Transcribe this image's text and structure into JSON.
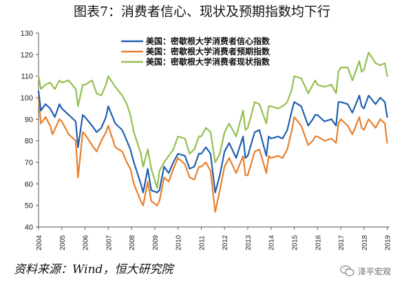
{
  "title": "图表7：消费者信心、现状及预期指数均下行",
  "source": "资料来源：Wind，恒大研究院",
  "watermark": "泽平宏观",
  "chart_data": {
    "type": "line",
    "x_ticks": [
      "2004",
      "2005",
      "2006",
      "2007",
      "2008",
      "2009",
      "2010",
      "2011",
      "2012",
      "2013",
      "2014",
      "2015",
      "2016",
      "2017",
      "2018",
      "2019"
    ],
    "y_ticks": [
      40,
      50,
      60,
      70,
      80,
      90,
      100,
      110,
      120,
      130
    ],
    "xlim": [
      2004.0,
      2019.1
    ],
    "ylim": [
      40,
      130
    ],
    "grid": false,
    "legend_position": "top-right",
    "series": [
      {
        "name": "美国：密歇根大学消费者信心指数",
        "color": "#1f5fad",
        "points": [
          [
            2004.0,
            103
          ],
          [
            2004.1,
            94
          ],
          [
            2004.3,
            97
          ],
          [
            2004.5,
            95
          ],
          [
            2004.7,
            91
          ],
          [
            2004.9,
            97
          ],
          [
            2005.0,
            95
          ],
          [
            2005.3,
            92
          ],
          [
            2005.6,
            89
          ],
          [
            2005.7,
            77
          ],
          [
            2005.9,
            92
          ],
          [
            2006.0,
            91
          ],
          [
            2006.3,
            87
          ],
          [
            2006.5,
            84
          ],
          [
            2006.7,
            86
          ],
          [
            2006.9,
            91
          ],
          [
            2007.0,
            96
          ],
          [
            2007.3,
            88
          ],
          [
            2007.6,
            85
          ],
          [
            2007.8,
            80
          ],
          [
            2007.95,
            76
          ],
          [
            2008.1,
            70
          ],
          [
            2008.4,
            60
          ],
          [
            2008.5,
            56
          ],
          [
            2008.7,
            67
          ],
          [
            2008.85,
            57
          ],
          [
            2009.1,
            56
          ],
          [
            2009.2,
            57
          ],
          [
            2009.4,
            68
          ],
          [
            2009.6,
            65
          ],
          [
            2009.8,
            70
          ],
          [
            2010.0,
            74
          ],
          [
            2010.3,
            73
          ],
          [
            2010.5,
            67
          ],
          [
            2010.7,
            68
          ],
          [
            2010.9,
            74
          ],
          [
            2011.0,
            74
          ],
          [
            2011.2,
            77
          ],
          [
            2011.4,
            74
          ],
          [
            2011.6,
            56
          ],
          [
            2011.8,
            64
          ],
          [
            2012.0,
            75
          ],
          [
            2012.2,
            79
          ],
          [
            2012.5,
            72
          ],
          [
            2012.8,
            82
          ],
          [
            2012.9,
            72
          ],
          [
            2013.0,
            73
          ],
          [
            2013.3,
            84
          ],
          [
            2013.5,
            85
          ],
          [
            2013.8,
            73
          ],
          [
            2013.9,
            82
          ],
          [
            2014.0,
            81
          ],
          [
            2014.3,
            82
          ],
          [
            2014.5,
            81
          ],
          [
            2014.7,
            85
          ],
          [
            2014.9,
            94
          ],
          [
            2015.0,
            98
          ],
          [
            2015.3,
            96
          ],
          [
            2015.6,
            87
          ],
          [
            2015.8,
            90
          ],
          [
            2015.9,
            92
          ],
          [
            2016.0,
            92
          ],
          [
            2016.3,
            89
          ],
          [
            2016.6,
            90
          ],
          [
            2016.8,
            87
          ],
          [
            2016.9,
            98
          ],
          [
            2017.0,
            98
          ],
          [
            2017.3,
            97
          ],
          [
            2017.5,
            93
          ],
          [
            2017.8,
            101
          ],
          [
            2017.9,
            96
          ],
          [
            2018.0,
            95
          ],
          [
            2018.2,
            101
          ],
          [
            2018.5,
            97
          ],
          [
            2018.7,
            100
          ],
          [
            2018.9,
            98
          ],
          [
            2019.0,
            91
          ]
        ]
      },
      {
        "name": "美国：密歇根大学消费者预期指数",
        "color": "#e87f2c",
        "points": [
          [
            2004.0,
            100
          ],
          [
            2004.1,
            88
          ],
          [
            2004.3,
            91
          ],
          [
            2004.5,
            87
          ],
          [
            2004.6,
            83
          ],
          [
            2004.9,
            90
          ],
          [
            2005.0,
            89
          ],
          [
            2005.3,
            83
          ],
          [
            2005.6,
            80
          ],
          [
            2005.7,
            63
          ],
          [
            2005.9,
            84
          ],
          [
            2006.0,
            83
          ],
          [
            2006.3,
            78
          ],
          [
            2006.5,
            75
          ],
          [
            2006.7,
            80
          ],
          [
            2006.9,
            84
          ],
          [
            2007.0,
            87
          ],
          [
            2007.3,
            77
          ],
          [
            2007.6,
            75
          ],
          [
            2007.8,
            70
          ],
          [
            2007.95,
            67
          ],
          [
            2008.1,
            60
          ],
          [
            2008.4,
            52
          ],
          [
            2008.5,
            50
          ],
          [
            2008.7,
            61
          ],
          [
            2008.85,
            52
          ],
          [
            2009.1,
            50
          ],
          [
            2009.2,
            52
          ],
          [
            2009.4,
            63
          ],
          [
            2009.6,
            61
          ],
          [
            2009.8,
            67
          ],
          [
            2010.0,
            72
          ],
          [
            2010.3,
            69
          ],
          [
            2010.5,
            63
          ],
          [
            2010.7,
            62
          ],
          [
            2010.9,
            68
          ],
          [
            2011.0,
            68
          ],
          [
            2011.2,
            70
          ],
          [
            2011.4,
            66
          ],
          [
            2011.6,
            47
          ],
          [
            2011.8,
            57
          ],
          [
            2012.0,
            68
          ],
          [
            2012.2,
            72
          ],
          [
            2012.5,
            65
          ],
          [
            2012.8,
            73
          ],
          [
            2012.9,
            64
          ],
          [
            2013.0,
            64
          ],
          [
            2013.3,
            75
          ],
          [
            2013.5,
            76
          ],
          [
            2013.8,
            65
          ],
          [
            2013.9,
            73
          ],
          [
            2014.0,
            72
          ],
          [
            2014.3,
            73
          ],
          [
            2014.5,
            72
          ],
          [
            2014.7,
            76
          ],
          [
            2014.9,
            85
          ],
          [
            2015.0,
            91
          ],
          [
            2015.3,
            87
          ],
          [
            2015.6,
            78
          ],
          [
            2015.8,
            80
          ],
          [
            2015.9,
            82
          ],
          [
            2016.0,
            82
          ],
          [
            2016.3,
            80
          ],
          [
            2016.6,
            81
          ],
          [
            2016.8,
            79
          ],
          [
            2016.9,
            88
          ],
          [
            2017.0,
            90
          ],
          [
            2017.3,
            87
          ],
          [
            2017.5,
            83
          ],
          [
            2017.8,
            91
          ],
          [
            2017.9,
            86
          ],
          [
            2018.0,
            85
          ],
          [
            2018.2,
            90
          ],
          [
            2018.5,
            86
          ],
          [
            2018.7,
            90
          ],
          [
            2018.9,
            88
          ],
          [
            2019.0,
            79
          ]
        ]
      },
      {
        "name": "美国：密歇根大学消费者现状指数",
        "color": "#93bf4f",
        "points": [
          [
            2004.0,
            110
          ],
          [
            2004.1,
            104
          ],
          [
            2004.3,
            106
          ],
          [
            2004.5,
            107
          ],
          [
            2004.7,
            104
          ],
          [
            2004.9,
            108
          ],
          [
            2005.0,
            107
          ],
          [
            2005.3,
            108
          ],
          [
            2005.6,
            104
          ],
          [
            2005.7,
            96
          ],
          [
            2005.9,
            106
          ],
          [
            2006.0,
            106
          ],
          [
            2006.3,
            108
          ],
          [
            2006.5,
            102
          ],
          [
            2006.7,
            101
          ],
          [
            2006.9,
            106
          ],
          [
            2007.0,
            110
          ],
          [
            2007.3,
            105
          ],
          [
            2007.6,
            101
          ],
          [
            2007.8,
            97
          ],
          [
            2007.95,
            92
          ],
          [
            2008.1,
            84
          ],
          [
            2008.4,
            74
          ],
          [
            2008.5,
            68
          ],
          [
            2008.7,
            76
          ],
          [
            2008.85,
            67
          ],
          [
            2009.1,
            58
          ],
          [
            2009.2,
            66
          ],
          [
            2009.4,
            70
          ],
          [
            2009.6,
            73
          ],
          [
            2009.8,
            76
          ],
          [
            2010.0,
            82
          ],
          [
            2010.3,
            81
          ],
          [
            2010.5,
            74
          ],
          [
            2010.7,
            76
          ],
          [
            2010.9,
            82
          ],
          [
            2011.0,
            82
          ],
          [
            2011.2,
            86
          ],
          [
            2011.4,
            84
          ],
          [
            2011.6,
            70
          ],
          [
            2011.8,
            74
          ],
          [
            2012.0,
            84
          ],
          [
            2012.2,
            88
          ],
          [
            2012.5,
            82
          ],
          [
            2012.8,
            94
          ],
          [
            2012.9,
            85
          ],
          [
            2013.0,
            86
          ],
          [
            2013.3,
            98
          ],
          [
            2013.5,
            97
          ],
          [
            2013.8,
            88
          ],
          [
            2013.9,
            96
          ],
          [
            2014.0,
            96
          ],
          [
            2014.3,
            95
          ],
          [
            2014.5,
            96
          ],
          [
            2014.7,
            98
          ],
          [
            2014.9,
            104
          ],
          [
            2015.0,
            110
          ],
          [
            2015.3,
            109
          ],
          [
            2015.6,
            102
          ],
          [
            2015.8,
            106
          ],
          [
            2015.9,
            108
          ],
          [
            2016.0,
            106
          ],
          [
            2016.3,
            105
          ],
          [
            2016.6,
            106
          ],
          [
            2016.8,
            102
          ],
          [
            2016.9,
            112
          ],
          [
            2017.0,
            114
          ],
          [
            2017.3,
            114
          ],
          [
            2017.5,
            108
          ],
          [
            2017.8,
            117
          ],
          [
            2017.9,
            112
          ],
          [
            2018.0,
            113
          ],
          [
            2018.2,
            121
          ],
          [
            2018.5,
            116
          ],
          [
            2018.7,
            115
          ],
          [
            2018.9,
            116
          ],
          [
            2019.0,
            110
          ]
        ]
      }
    ]
  }
}
